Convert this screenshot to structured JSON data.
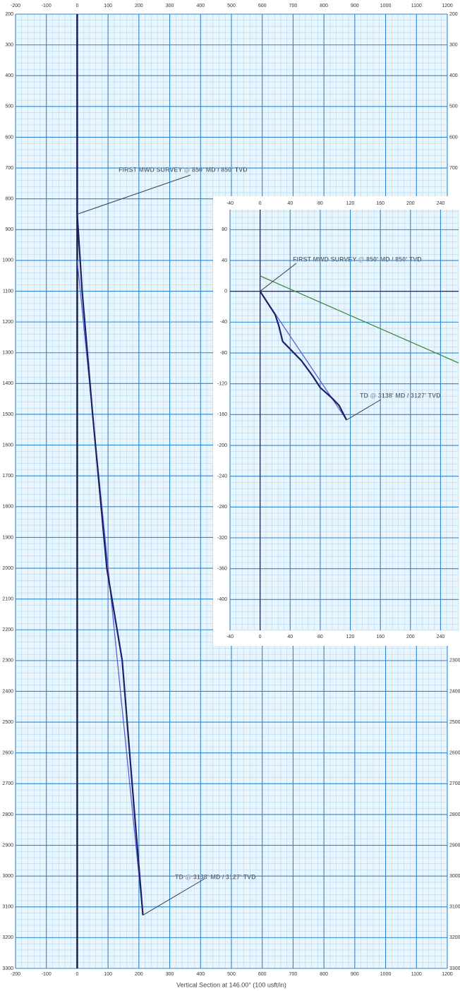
{
  "chart_data": [
    {
      "type": "line",
      "xlabel": "Vertical Section at 146.00° (100 usft/in)",
      "xlim": [
        -200,
        1200
      ],
      "ylim": [
        200,
        3300
      ],
      "yaxis_inverted": true,
      "grid": true,
      "xticks": [
        -200,
        -100,
        0,
        100,
        200,
        300,
        400,
        500,
        600,
        700,
        800,
        900,
        1000,
        1100,
        1200
      ],
      "yticks": [
        200,
        300,
        400,
        500,
        600,
        700,
        800,
        900,
        1000,
        1100,
        1200,
        1300,
        1400,
        1500,
        1600,
        1700,
        1800,
        1900,
        2000,
        2100,
        2200,
        2300,
        2400,
        2500,
        2600,
        2700,
        2800,
        2900,
        3000,
        3100,
        3200,
        3300
      ],
      "series": [
        {
          "color": "#5b5fd6",
          "x": [
            0,
            213
          ],
          "values": [
            1000,
            3127
          ]
        },
        {
          "color": "#1d2066",
          "x": [
            0,
            0,
            16,
            50,
            96,
            146,
            178,
            213
          ],
          "values": [
            200,
            850,
            1100,
            1500,
            2000,
            2300,
            2700,
            3127
          ]
        }
      ],
      "annotations": [
        {
          "text": "FIRST MWD SURVEY @ 850' MD / 850' TVD",
          "x": 0,
          "y": 850
        },
        {
          "text": "TD @ 3138' MD / 3127' TVD",
          "x": 213,
          "y": 3127
        }
      ]
    },
    {
      "type": "line",
      "xlim": [
        -40,
        264
      ],
      "ylim": [
        -440,
        106
      ],
      "grid": true,
      "xticks": [
        -40,
        0,
        40,
        80,
        120,
        160,
        200,
        240
      ],
      "yticks": [
        80,
        40,
        0,
        -40,
        -80,
        -120,
        -160,
        -200,
        -240,
        -280,
        -320,
        -360,
        -400
      ],
      "series": [
        {
          "color": "#3f8a3c",
          "x": [
            0,
            264
          ],
          "values": [
            20,
            -93
          ]
        },
        {
          "color": "#5b5fd6",
          "x": [
            0,
            115
          ],
          "values": [
            0,
            -167
          ]
        },
        {
          "color": "#1d2066",
          "x": [
            0,
            10,
            20,
            25,
            30,
            40,
            55,
            70,
            80,
            95,
            105,
            115
          ],
          "values": [
            0,
            -15,
            -30,
            -45,
            -65,
            -75,
            -90,
            -110,
            -125,
            -138,
            -148,
            -167
          ]
        }
      ],
      "annotations": [
        {
          "text": "FIRST MWD SURVEY @ 850' MD / 850' TVD",
          "x": 0,
          "y": 0
        },
        {
          "text": "TD @ 3138' MD / 3127' TVD",
          "x": 115,
          "y": -167
        }
      ]
    }
  ]
}
